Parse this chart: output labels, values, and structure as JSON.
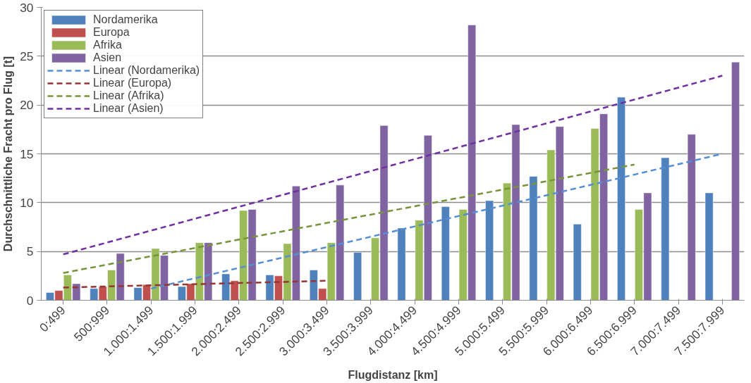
{
  "chart_data": {
    "type": "bar",
    "xlabel": "Flugdistanz [km]",
    "ylabel": "Durchschnittliche Fracht pro Flug [t]",
    "categories": [
      "0:499",
      "500:999",
      "1.000:1.499",
      "1.500:1.999",
      "2.000:2.499",
      "2.500:2.999",
      "3.000:3.499",
      "3.500:3.999",
      "4.000:4.499",
      "4.500:4.999",
      "5.000:5.499",
      "5.500:5.999",
      "6.000:6.499",
      "6.500:6.999",
      "7.000:7.499",
      "7.500:7.999"
    ],
    "series": [
      {
        "name": "Nordamerika",
        "color": "#4f81bd",
        "values": [
          0.8,
          1.2,
          1.3,
          1.4,
          2.7,
          2.6,
          3.1,
          4.9,
          7.4,
          9.6,
          10.2,
          12.7,
          7.8,
          20.8,
          14.6,
          11.0
        ]
      },
      {
        "name": "Europa",
        "color": "#c0504d",
        "values": [
          1.0,
          1.4,
          1.6,
          1.7,
          2.0,
          2.5,
          1.2,
          null,
          null,
          null,
          null,
          null,
          null,
          null,
          null,
          null
        ]
      },
      {
        "name": "Afrika",
        "color": "#9bbb59",
        "values": [
          2.6,
          3.1,
          5.3,
          5.9,
          9.2,
          5.8,
          5.9,
          6.4,
          8.2,
          9.3,
          12.0,
          15.4,
          17.6,
          9.3,
          null,
          null
        ]
      },
      {
        "name": "Asien",
        "color": "#8064a2",
        "values": [
          1.7,
          4.8,
          4.6,
          5.9,
          9.3,
          11.7,
          11.8,
          17.9,
          16.9,
          28.2,
          18.0,
          17.8,
          19.1,
          11.0,
          17.0,
          24.4
        ]
      },
      {
        "name": "Linear (Nordamerika)",
        "type": "line",
        "line_style": "dashed",
        "color": "#558ed5",
        "x": [
          "1.000:1.499",
          "7.500:7.999"
        ],
        "values": [
          1.2,
          15.0
        ]
      },
      {
        "name": "Linear (Europa)",
        "type": "line",
        "line_style": "dashed",
        "color": "#943634",
        "x": [
          "0:499",
          "3.000:3.499"
        ],
        "values": [
          1.3,
          2.0
        ]
      },
      {
        "name": "Linear (Afrika)",
        "type": "line",
        "line_style": "dashed",
        "color": "#77933c",
        "x": [
          "0:499",
          "6.500:6.999"
        ],
        "values": [
          2.8,
          13.9
        ]
      },
      {
        "name": "Linear (Asien)",
        "type": "line",
        "line_style": "dashed",
        "color": "#7030a0",
        "x": [
          "0:499",
          "7.500:7.999"
        ],
        "values": [
          4.7,
          23.0
        ]
      }
    ],
    "ylim": [
      0,
      30
    ],
    "yticks": [
      0,
      5,
      10,
      15,
      20,
      25,
      30
    ],
    "grid": "y",
    "legend": "top left"
  }
}
